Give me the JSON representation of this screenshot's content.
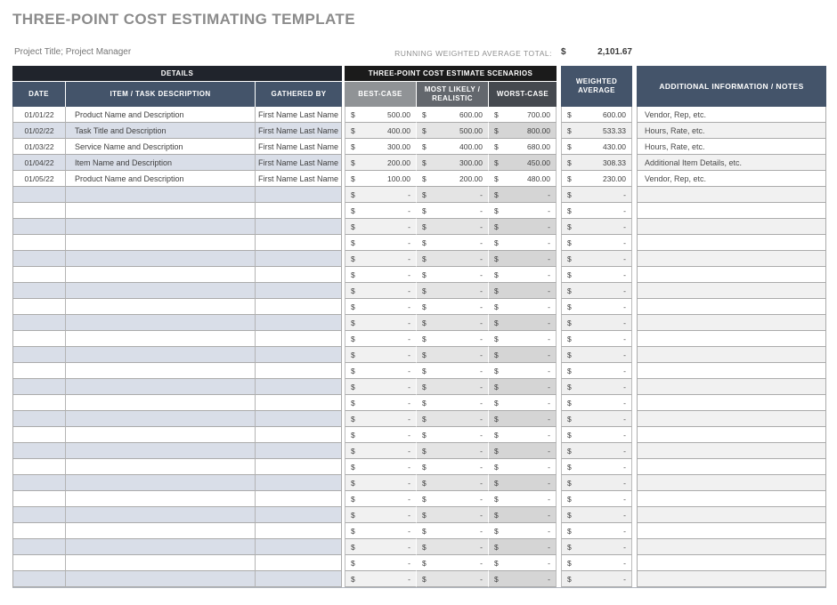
{
  "page": {
    "title": "THREE-POINT COST ESTIMATING TEMPLATE",
    "subtitle": "Project Title; Project Manager"
  },
  "summary": {
    "label": "RUNNING WEIGHTED AVERAGE TOTAL:",
    "currency": "$",
    "value": "2,101.67"
  },
  "table": {
    "groups": {
      "details": "DETAILS",
      "scenarios": "THREE-POINT COST ESTIMATE SCENARIOS"
    },
    "columns": {
      "date": "DATE",
      "item": "ITEM / TASK DESCRIPTION",
      "gathered": "GATHERED BY",
      "best": "BEST-CASE",
      "most_likely": "MOST LIKELY / REALISTIC",
      "worst": "WORST-CASE",
      "weighted": "WEIGHTED AVERAGE",
      "notes": "ADDITIONAL INFORMATION / NOTES"
    },
    "currency_symbol": "$",
    "rows": [
      {
        "date": "01/01/22",
        "item": "Product Name and Description",
        "gathered": "First Name Last Name",
        "best": "500.00",
        "most_likely": "600.00",
        "worst": "700.00",
        "weighted": "600.00",
        "notes": "Vendor, Rep, etc."
      },
      {
        "date": "01/02/22",
        "item": "Task Title and Description",
        "gathered": "First Name Last Name",
        "best": "400.00",
        "most_likely": "500.00",
        "worst": "800.00",
        "weighted": "533.33",
        "notes": "Hours, Rate, etc."
      },
      {
        "date": "01/03/22",
        "item": "Service Name and Description",
        "gathered": "First Name Last Name",
        "best": "300.00",
        "most_likely": "400.00",
        "worst": "680.00",
        "weighted": "430.00",
        "notes": "Hours, Rate, etc."
      },
      {
        "date": "01/04/22",
        "item": "Item Name and Description",
        "gathered": "First Name Last Name",
        "best": "200.00",
        "most_likely": "300.00",
        "worst": "450.00",
        "weighted": "308.33",
        "notes": "Additional Item Details, etc."
      },
      {
        "date": "01/05/22",
        "item": "Product Name and Description",
        "gathered": "First Name Last Name",
        "best": "100.00",
        "most_likely": "200.00",
        "worst": "480.00",
        "weighted": "230.00",
        "notes": "Vendor, Rep, etc."
      }
    ],
    "empty_row": {
      "date": "",
      "item": "",
      "gathered": "",
      "best": "-",
      "most_likely": "-",
      "worst": "-",
      "weighted": "-",
      "notes": ""
    },
    "empty_row_count": 25
  },
  "colors": {
    "title_gray": "#8b8b8b",
    "header_navy": "#44546a",
    "details_bar": "#20242c",
    "scenarios_bar": "#1b1b1b",
    "best_case_gray": "#909396",
    "most_likely_gray": "#63676d",
    "worst_case_gray": "#45494f",
    "stripe_blue": "#d9dee8",
    "stripe_best": "#f1f1f1",
    "stripe_most_likely": "#e4e4e4",
    "stripe_worst": "#d5d5d5"
  }
}
